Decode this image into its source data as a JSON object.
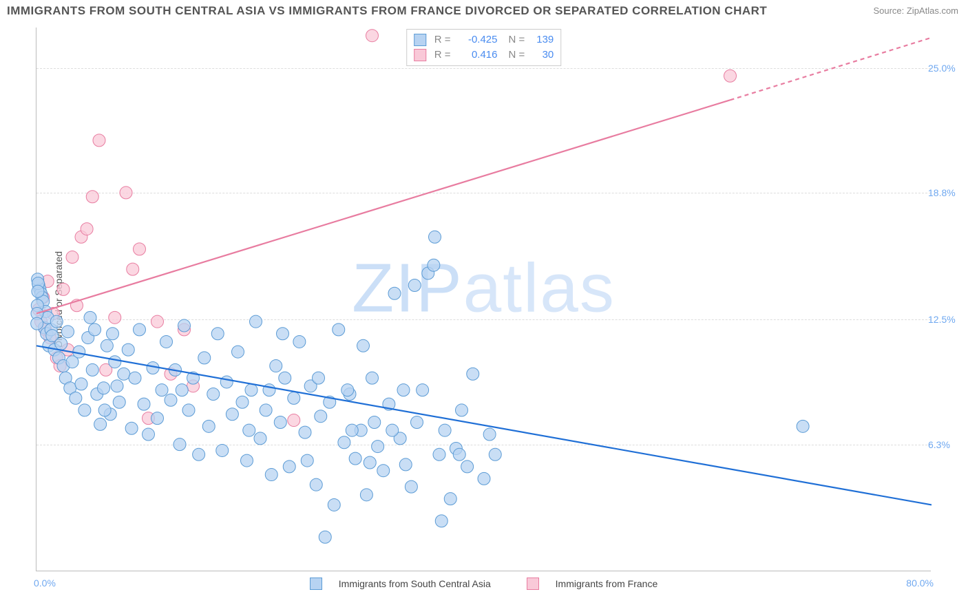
{
  "title": "IMMIGRANTS FROM SOUTH CENTRAL ASIA VS IMMIGRANTS FROM FRANCE DIVORCED OR SEPARATED CORRELATION CHART",
  "source": "Source: ZipAtlas.com",
  "ylabel": "Divorced or Separated",
  "watermark_a": "ZIP",
  "watermark_b": "atlas",
  "chart": {
    "type": "scatter",
    "background_color": "#ffffff",
    "grid_color": "#dddddd",
    "xlim": [
      0,
      80
    ],
    "ylim": [
      0,
      27
    ],
    "xtick_min_label": "0.0%",
    "xtick_max_label": "80.0%",
    "yticks": [
      6.3,
      12.5,
      18.8,
      25.0
    ],
    "ytick_labels": [
      "6.3%",
      "12.5%",
      "18.8%",
      "25.0%"
    ],
    "series_a": {
      "name": "Immigrants from South Central Asia",
      "color_stroke": "#5b9bd5",
      "color_fill": "#b7d3f2",
      "R": "-0.425",
      "N": "139",
      "trend": {
        "x1": 0,
        "y1": 11.2,
        "x2": 80,
        "y2": 3.3
      },
      "marker_r": 9,
      "points": [
        [
          0.2,
          14.2
        ],
        [
          0.3,
          14.0
        ],
        [
          0.4,
          13.8
        ],
        [
          0.5,
          13.6
        ],
        [
          0.6,
          13.4
        ],
        [
          0.7,
          12.1
        ],
        [
          0.8,
          12.9
        ],
        [
          0.9,
          11.8
        ],
        [
          1.0,
          12.6
        ],
        [
          1.1,
          11.2
        ],
        [
          1.3,
          12.0
        ],
        [
          1.4,
          11.7
        ],
        [
          1.6,
          11.0
        ],
        [
          1.8,
          12.4
        ],
        [
          2.0,
          10.6
        ],
        [
          2.2,
          11.3
        ],
        [
          2.4,
          10.2
        ],
        [
          2.6,
          9.6
        ],
        [
          2.8,
          11.9
        ],
        [
          3.0,
          9.1
        ],
        [
          3.2,
          10.4
        ],
        [
          3.5,
          8.6
        ],
        [
          3.8,
          10.9
        ],
        [
          4.0,
          9.3
        ],
        [
          4.3,
          8.0
        ],
        [
          4.6,
          11.6
        ],
        [
          5.0,
          10.0
        ],
        [
          5.4,
          8.8
        ],
        [
          5.7,
          7.3
        ],
        [
          6.0,
          9.1
        ],
        [
          6.3,
          11.2
        ],
        [
          6.6,
          7.8
        ],
        [
          7.0,
          10.4
        ],
        [
          7.4,
          8.4
        ],
        [
          7.8,
          9.8
        ],
        [
          8.2,
          11.0
        ],
        [
          8.5,
          7.1
        ],
        [
          8.8,
          9.6
        ],
        [
          9.2,
          12.0
        ],
        [
          9.6,
          8.3
        ],
        [
          10.0,
          6.8
        ],
        [
          10.4,
          10.1
        ],
        [
          10.8,
          7.6
        ],
        [
          11.2,
          9.0
        ],
        [
          11.6,
          11.4
        ],
        [
          12.0,
          8.5
        ],
        [
          12.4,
          10.0
        ],
        [
          12.8,
          6.3
        ],
        [
          13.2,
          12.2
        ],
        [
          13.6,
          8.0
        ],
        [
          14.0,
          9.6
        ],
        [
          14.5,
          5.8
        ],
        [
          15.0,
          10.6
        ],
        [
          15.4,
          7.2
        ],
        [
          15.8,
          8.8
        ],
        [
          16.2,
          11.8
        ],
        [
          16.6,
          6.0
        ],
        [
          17.0,
          9.4
        ],
        [
          17.5,
          7.8
        ],
        [
          18.0,
          10.9
        ],
        [
          18.4,
          8.4
        ],
        [
          18.8,
          5.5
        ],
        [
          19.2,
          9.0
        ],
        [
          19.6,
          12.4
        ],
        [
          20.0,
          6.6
        ],
        [
          20.5,
          8.0
        ],
        [
          21.0,
          4.8
        ],
        [
          21.4,
          10.2
        ],
        [
          21.8,
          7.4
        ],
        [
          22.2,
          9.6
        ],
        [
          22.6,
          5.2
        ],
        [
          23.0,
          8.6
        ],
        [
          23.5,
          11.4
        ],
        [
          24.0,
          6.9
        ],
        [
          24.5,
          9.2
        ],
        [
          25.0,
          4.3
        ],
        [
          25.4,
          7.7
        ],
        [
          25.8,
          1.7
        ],
        [
          26.2,
          8.4
        ],
        [
          26.6,
          3.3
        ],
        [
          27.0,
          12.0
        ],
        [
          27.5,
          6.4
        ],
        [
          28.0,
          8.8
        ],
        [
          28.5,
          5.6
        ],
        [
          29.0,
          7.0
        ],
        [
          29.5,
          3.8
        ],
        [
          30.0,
          9.6
        ],
        [
          30.5,
          6.2
        ],
        [
          31.0,
          5.0
        ],
        [
          31.5,
          8.3
        ],
        [
          32.0,
          13.8
        ],
        [
          32.5,
          6.6
        ],
        [
          33.0,
          5.3
        ],
        [
          33.5,
          4.2
        ],
        [
          34.0,
          7.4
        ],
        [
          34.5,
          9.0
        ],
        [
          35.0,
          14.8
        ],
        [
          35.5,
          15.2
        ],
        [
          35.6,
          16.6
        ],
        [
          36.0,
          5.8
        ],
        [
          36.5,
          7.0
        ],
        [
          37.0,
          3.6
        ],
        [
          37.5,
          6.1
        ],
        [
          38.0,
          8.0
        ],
        [
          38.5,
          5.2
        ],
        [
          39.0,
          9.8
        ],
        [
          40.0,
          4.6
        ],
        [
          40.5,
          6.8
        ],
        [
          68.5,
          7.2
        ],
        [
          0.1,
          14.5
        ],
        [
          0.15,
          14.3
        ],
        [
          0.12,
          13.9
        ],
        [
          0.08,
          13.2
        ],
        [
          0.06,
          12.8
        ],
        [
          0.04,
          12.3
        ],
        [
          4.8,
          12.6
        ],
        [
          5.2,
          12.0
        ],
        [
          6.1,
          8.0
        ],
        [
          6.8,
          11.8
        ],
        [
          7.2,
          9.2
        ],
        [
          13.0,
          9.0
        ],
        [
          19.0,
          7.0
        ],
        [
          20.8,
          9.0
        ],
        [
          22.0,
          11.8
        ],
        [
          24.2,
          5.5
        ],
        [
          25.2,
          9.6
        ],
        [
          27.8,
          9.0
        ],
        [
          28.2,
          7.0
        ],
        [
          29.2,
          11.2
        ],
        [
          29.8,
          5.4
        ],
        [
          30.2,
          7.4
        ],
        [
          31.8,
          7.0
        ],
        [
          32.8,
          9.0
        ],
        [
          37.8,
          5.8
        ],
        [
          36.2,
          2.5
        ],
        [
          41.0,
          5.8
        ],
        [
          33.8,
          14.2
        ]
      ]
    },
    "series_b": {
      "name": "Immigrants from France",
      "color_stroke": "#e87ca0",
      "color_fill": "#f9c9d8",
      "R": "0.416",
      "N": "30",
      "trend_solid": {
        "x1": 0,
        "y1": 12.8,
        "x2": 62,
        "y2": 23.4
      },
      "trend_dash": {
        "x1": 62,
        "y1": 23.4,
        "x2": 80,
        "y2": 26.5
      },
      "marker_r": 9,
      "points": [
        [
          0.2,
          13.0
        ],
        [
          0.4,
          12.4
        ],
        [
          0.6,
          13.6
        ],
        [
          0.8,
          12.0
        ],
        [
          1.0,
          14.4
        ],
        [
          1.2,
          11.6
        ],
        [
          1.5,
          12.8
        ],
        [
          1.8,
          10.6
        ],
        [
          2.1,
          10.2
        ],
        [
          2.4,
          14.0
        ],
        [
          2.8,
          11.0
        ],
        [
          3.2,
          15.6
        ],
        [
          3.6,
          13.2
        ],
        [
          4.0,
          16.6
        ],
        [
          4.5,
          17.0
        ],
        [
          5.0,
          18.6
        ],
        [
          5.6,
          21.4
        ],
        [
          6.2,
          10.0
        ],
        [
          7.0,
          12.6
        ],
        [
          8.0,
          18.8
        ],
        [
          8.6,
          15.0
        ],
        [
          9.2,
          16.0
        ],
        [
          10.0,
          7.6
        ],
        [
          10.8,
          12.4
        ],
        [
          12.0,
          9.8
        ],
        [
          13.2,
          12.0
        ],
        [
          14.0,
          9.2
        ],
        [
          23.0,
          7.5
        ],
        [
          30.0,
          26.6
        ],
        [
          62.0,
          24.6
        ]
      ]
    }
  }
}
